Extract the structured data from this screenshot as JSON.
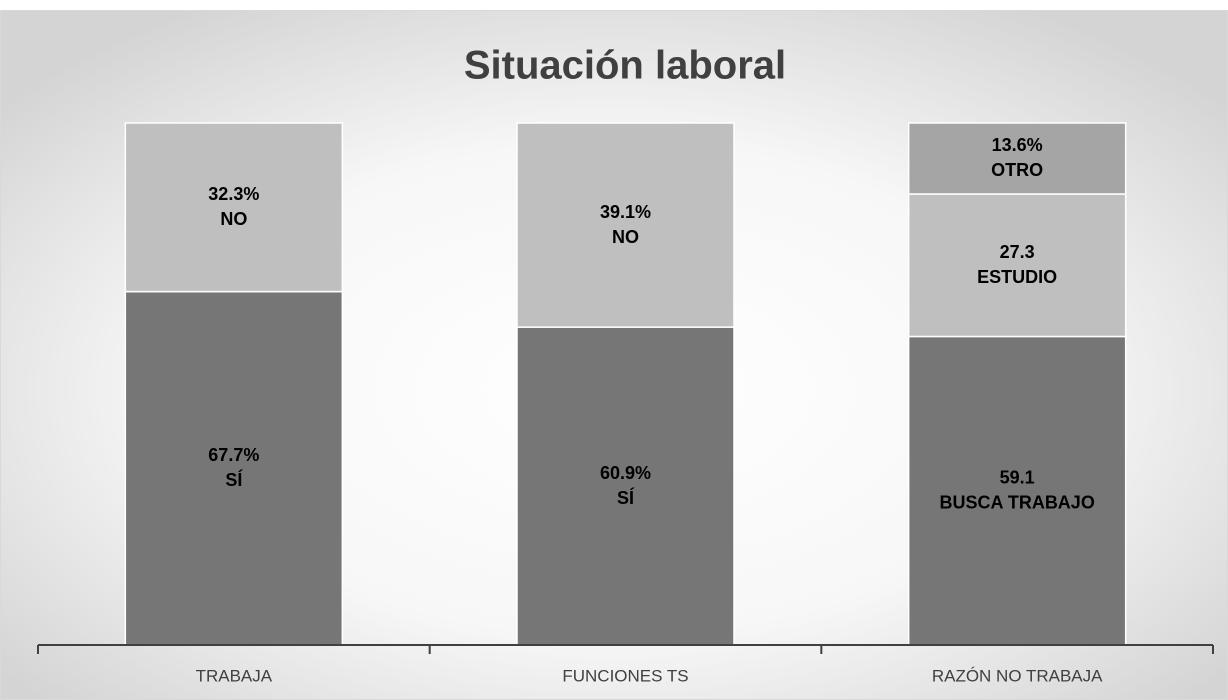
{
  "chart_data": {
    "type": "stacked_bar",
    "title": "Situación laboral",
    "categories": [
      "TRABAJA",
      "FUNCIONES TS",
      "RAZÓN NO TRABAJA"
    ],
    "ylim": [
      0,
      100
    ],
    "stacks": [
      {
        "names": [
          "SÍ",
          "NO"
        ],
        "values": [
          67.7,
          32.3
        ],
        "value_labels": [
          "67.7%",
          "32.3%"
        ],
        "colors": [
          "#767676",
          "#bfbfbf"
        ]
      },
      {
        "names": [
          "SÍ",
          "NO"
        ],
        "values": [
          60.9,
          39.1
        ],
        "value_labels": [
          "60.9%",
          "39.1%"
        ],
        "colors": [
          "#767676",
          "#bfbfbf"
        ]
      },
      {
        "names": [
          "BUSCA TRABAJO",
          "ESTUDIO",
          "OTRO"
        ],
        "values": [
          59.1,
          27.3,
          13.6
        ],
        "value_labels": [
          "59.1",
          "27.3",
          "13.6%"
        ],
        "colors": [
          "#767676",
          "#bfbfbf",
          "#a5a5a5"
        ]
      }
    ]
  }
}
